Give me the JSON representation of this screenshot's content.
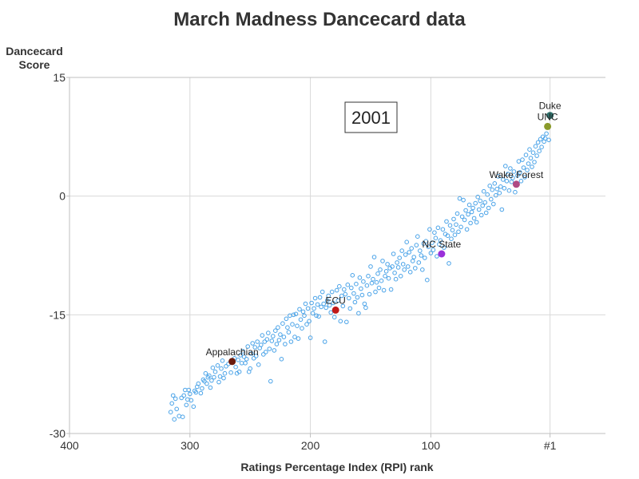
{
  "chart_data": {
    "type": "scatter",
    "title": "March Madness Dancecard data",
    "ylabel_line1": "Dancecard",
    "ylabel_line2": "Score",
    "xlabel": "Ratings Percentage Index (RPI) rank",
    "x_reversed": true,
    "xlim": [
      400,
      -45
    ],
    "ylim": [
      -30,
      15
    ],
    "grid": true,
    "x_ticks": [
      {
        "value": 400,
        "label": "400"
      },
      {
        "value": 300,
        "label": "300"
      },
      {
        "value": 200,
        "label": "200"
      },
      {
        "value": 100,
        "label": "100"
      },
      {
        "value": 1,
        "label": "#1"
      }
    ],
    "y_ticks": [
      {
        "value": 15,
        "label": "15"
      },
      {
        "value": 0,
        "label": "0"
      },
      {
        "value": -15,
        "label": "-15"
      },
      {
        "value": -30,
        "label": "-30"
      }
    ],
    "annotation": "2001",
    "point_color": "#4aa3e8",
    "highlighted": [
      {
        "name": "Duke",
        "x": 1,
        "y": 10.2,
        "color": "#2e6f6a"
      },
      {
        "name": "UNC",
        "x": 3,
        "y": 8.8,
        "color": "#8a9a2a"
      },
      {
        "name": "Wake Forest",
        "x": 29,
        "y": 1.5,
        "color": "#b04a82"
      },
      {
        "name": "NC State",
        "x": 91,
        "y": -7.3,
        "color": "#9b30d9"
      },
      {
        "name": "ECU",
        "x": 179,
        "y": -14.4,
        "color": "#c01818"
      },
      {
        "name": "Appalachian",
        "x": 265,
        "y": -20.9,
        "color": "#6b1b0d"
      }
    ],
    "series_points": [
      [
        316,
        -27.3
      ],
      [
        315,
        -26.2
      ],
      [
        314,
        -25.2
      ],
      [
        313,
        -28.2
      ],
      [
        312,
        -25.6
      ],
      [
        311,
        -26.9
      ],
      [
        309,
        -27.8
      ],
      [
        307,
        -25.5
      ],
      [
        306,
        -27.9
      ],
      [
        305,
        -25.2
      ],
      [
        304,
        -24.5
      ],
      [
        303,
        -26.4
      ],
      [
        302,
        -25.7
      ],
      [
        301,
        -24.5
      ],
      [
        300,
        -25.0
      ],
      [
        299,
        -25.8
      ],
      [
        297,
        -26.6
      ],
      [
        296,
        -24.6
      ],
      [
        295,
        -24.8
      ],
      [
        294,
        -24.1
      ],
      [
        293,
        -23.7
      ],
      [
        291,
        -24.9
      ],
      [
        290,
        -24.3
      ],
      [
        289,
        -23.2
      ],
      [
        288,
        -23.4
      ],
      [
        287,
        -22.4
      ],
      [
        286,
        -23.7
      ],
      [
        285,
        -22.9
      ],
      [
        284,
        -22.7
      ],
      [
        283,
        -24.2
      ],
      [
        282,
        -23.3
      ],
      [
        281,
        -21.7
      ],
      [
        280,
        -22.9
      ],
      [
        279,
        -22.2
      ],
      [
        277,
        -21.4
      ],
      [
        276,
        -23.5
      ],
      [
        275,
        -22.8
      ],
      [
        274,
        -21.8
      ],
      [
        273,
        -20.8
      ],
      [
        272,
        -23.0
      ],
      [
        271,
        -22.4
      ],
      [
        270,
        -21.5
      ],
      [
        268,
        -21.2
      ],
      [
        266,
        -22.3
      ],
      [
        263,
        -20.5
      ],
      [
        262,
        -21.6
      ],
      [
        261,
        -22.4
      ],
      [
        260,
        -20.7
      ],
      [
        259,
        -22.2
      ],
      [
        258,
        -20.1
      ],
      [
        257,
        -21.1
      ],
      [
        256,
        -19.6
      ],
      [
        255,
        -20.3
      ],
      [
        254,
        -21.1
      ],
      [
        253,
        -20.6
      ],
      [
        252,
        -19.0
      ],
      [
        251,
        -22.2
      ],
      [
        250,
        -21.8
      ],
      [
        249,
        -19.9
      ],
      [
        248,
        -18.6
      ],
      [
        247,
        -20.5
      ],
      [
        246,
        -19.1
      ],
      [
        245,
        -20.2
      ],
      [
        244,
        -18.4
      ],
      [
        243,
        -21.3
      ],
      [
        242,
        -19.2
      ],
      [
        241,
        -18.8
      ],
      [
        240,
        -17.6
      ],
      [
        239,
        -20.0
      ],
      [
        238,
        -18.4
      ],
      [
        237,
        -19.7
      ],
      [
        236,
        -18.1
      ],
      [
        235,
        -17.3
      ],
      [
        234,
        -19.3
      ],
      [
        233,
        -23.4
      ],
      [
        232,
        -18.3
      ],
      [
        231,
        -17.7
      ],
      [
        230,
        -19.5
      ],
      [
        229,
        -17.0
      ],
      [
        228,
        -18.7
      ],
      [
        227,
        -16.6
      ],
      [
        226,
        -18.2
      ],
      [
        225,
        -17.5
      ],
      [
        224,
        -20.6
      ],
      [
        223,
        -16.1
      ],
      [
        222,
        -17.8
      ],
      [
        221,
        -18.7
      ],
      [
        220,
        -15.5
      ],
      [
        219,
        -16.6
      ],
      [
        218,
        -17.2
      ],
      [
        217,
        -15.1
      ],
      [
        216,
        -18.4
      ],
      [
        215,
        -16.2
      ],
      [
        214,
        -15.0
      ],
      [
        213,
        -17.8
      ],
      [
        212,
        -14.9
      ],
      [
        211,
        -16.4
      ],
      [
        210,
        -18.0
      ],
      [
        209,
        -14.3
      ],
      [
        208,
        -15.6
      ],
      [
        207,
        -16.7
      ],
      [
        206,
        -14.6
      ],
      [
        205,
        -15.1
      ],
      [
        204,
        -13.6
      ],
      [
        203,
        -16.2
      ],
      [
        202,
        -14.2
      ],
      [
        201,
        -15.8
      ],
      [
        200,
        -17.9
      ],
      [
        199,
        -13.5
      ],
      [
        198,
        -14.8
      ],
      [
        197,
        -14.2
      ],
      [
        196,
        -12.9
      ],
      [
        195,
        -15.1
      ],
      [
        194,
        -13.7
      ],
      [
        193,
        -15.2
      ],
      [
        192,
        -12.8
      ],
      [
        191,
        -14.0
      ],
      [
        190,
        -12.1
      ],
      [
        189,
        -13.6
      ],
      [
        188,
        -18.4
      ],
      [
        187,
        -14.1
      ],
      [
        186,
        -13.2
      ],
      [
        185,
        -12.6
      ],
      [
        184,
        -13.8
      ],
      [
        183,
        -14.7
      ],
      [
        182,
        -12.1
      ],
      [
        181,
        -13.5
      ],
      [
        180,
        -15.3
      ],
      [
        178,
        -11.9
      ],
      [
        177,
        -13.2
      ],
      [
        176,
        -11.4
      ],
      [
        175,
        -15.8
      ],
      [
        174,
        -12.6
      ],
      [
        173,
        -13.9
      ],
      [
        172,
        -11.8
      ],
      [
        171,
        -12.4
      ],
      [
        170,
        -15.9
      ],
      [
        169,
        -11.2
      ],
      [
        168,
        -12.9
      ],
      [
        167,
        -14.2
      ],
      [
        166,
        -11.6
      ],
      [
        165,
        -10.0
      ],
      [
        164,
        -12.3
      ],
      [
        163,
        -13.4
      ],
      [
        162,
        -11.1
      ],
      [
        161,
        -12.8
      ],
      [
        160,
        -14.8
      ],
      [
        159,
        -10.3
      ],
      [
        158,
        -11.7
      ],
      [
        157,
        -12.5
      ],
      [
        156,
        -10.8
      ],
      [
        155,
        -13.6
      ],
      [
        154,
        -14.1
      ],
      [
        153,
        -11.3
      ],
      [
        152,
        -10.1
      ],
      [
        151,
        -12.4
      ],
      [
        150,
        -8.9
      ],
      [
        149,
        -11.0
      ],
      [
        148,
        -10.5
      ],
      [
        147,
        -7.7
      ],
      [
        146,
        -12.1
      ],
      [
        145,
        -10.9
      ],
      [
        144,
        -9.8
      ],
      [
        143,
        -11.6
      ],
      [
        142,
        -9.3
      ],
      [
        141,
        -10.7
      ],
      [
        140,
        -8.2
      ],
      [
        139,
        -11.9
      ],
      [
        138,
        -10.1
      ],
      [
        137,
        -9.5
      ],
      [
        136,
        -8.6
      ],
      [
        135,
        -10.4
      ],
      [
        134,
        -9.1
      ],
      [
        133,
        -11.8
      ],
      [
        132,
        -8.9
      ],
      [
        131,
        -7.3
      ],
      [
        130,
        -9.7
      ],
      [
        129,
        -10.5
      ],
      [
        128,
        -8.4
      ],
      [
        127,
        -9.0
      ],
      [
        126,
        -7.8
      ],
      [
        125,
        -10.1
      ],
      [
        124,
        -6.9
      ],
      [
        123,
        -8.6
      ],
      [
        122,
        -9.3
      ],
      [
        121,
        -7.4
      ],
      [
        120,
        -5.8
      ],
      [
        119,
        -8.9
      ],
      [
        118,
        -7.1
      ],
      [
        117,
        -9.6
      ],
      [
        116,
        -6.6
      ],
      [
        115,
        -8.2
      ],
      [
        114,
        -7.7
      ],
      [
        113,
        -9.1
      ],
      [
        112,
        -6.2
      ],
      [
        111,
        -5.1
      ],
      [
        110,
        -8.4
      ],
      [
        109,
        -6.9
      ],
      [
        108,
        -7.5
      ],
      [
        107,
        -9.3
      ],
      [
        106,
        -6.0
      ],
      [
        105,
        -7.8
      ],
      [
        104,
        -5.7
      ],
      [
        103,
        -10.6
      ],
      [
        102,
        -6.4
      ],
      [
        101,
        -4.2
      ],
      [
        100,
        -7.2
      ],
      [
        99,
        -5.9
      ],
      [
        98,
        -6.8
      ],
      [
        97,
        -4.6
      ],
      [
        96,
        -5.3
      ],
      [
        95,
        -7.6
      ],
      [
        94,
        -4.0
      ],
      [
        93,
        -6.1
      ],
      [
        92,
        -5.6
      ],
      [
        90,
        -4.2
      ],
      [
        89,
        -6.5
      ],
      [
        88,
        -4.8
      ],
      [
        87,
        -3.2
      ],
      [
        86,
        -5.0
      ],
      [
        85,
        -8.5
      ],
      [
        84,
        -3.7
      ],
      [
        83,
        -5.4
      ],
      [
        82,
        -4.3
      ],
      [
        81,
        -2.9
      ],
      [
        80,
        -4.9
      ],
      [
        79,
        -3.6
      ],
      [
        78,
        -2.2
      ],
      [
        77,
        -4.5
      ],
      [
        76,
        -0.3
      ],
      [
        75,
        -3.9
      ],
      [
        74,
        -2.6
      ],
      [
        73,
        -0.5
      ],
      [
        72,
        -3.0
      ],
      [
        71,
        -1.8
      ],
      [
        70,
        -4.2
      ],
      [
        69,
        -2.3
      ],
      [
        68,
        -1.1
      ],
      [
        67,
        -3.4
      ],
      [
        66,
        -2.0
      ],
      [
        65,
        -1.5
      ],
      [
        64,
        -2.8
      ],
      [
        63,
        -0.9
      ],
      [
        62,
        -3.3
      ],
      [
        61,
        -0.1
      ],
      [
        60,
        -1.7
      ],
      [
        59,
        -0.6
      ],
      [
        58,
        -2.4
      ],
      [
        57,
        -1.2
      ],
      [
        56,
        0.6
      ],
      [
        55,
        -0.8
      ],
      [
        54,
        -2.1
      ],
      [
        53,
        0.2
      ],
      [
        52,
        -1.5
      ],
      [
        51,
        1.3
      ],
      [
        50,
        -0.4
      ],
      [
        49,
        0.8
      ],
      [
        48,
        -1.0
      ],
      [
        47,
        1.6
      ],
      [
        46,
        0.1
      ],
      [
        45,
        0.9
      ],
      [
        44,
        2.5
      ],
      [
        43,
        0.4
      ],
      [
        42,
        1.2
      ],
      [
        41,
        -1.7
      ],
      [
        40,
        2.1
      ],
      [
        39,
        1.0
      ],
      [
        38,
        3.8
      ],
      [
        37,
        1.9
      ],
      [
        36,
        2.8
      ],
      [
        35,
        0.7
      ],
      [
        34,
        3.5
      ],
      [
        33,
        1.8
      ],
      [
        32,
        2.3
      ],
      [
        31,
        3.1
      ],
      [
        30,
        0.5
      ],
      [
        28,
        2.6
      ],
      [
        27,
        4.4
      ],
      [
        26,
        3.0
      ],
      [
        25,
        1.9
      ],
      [
        24,
        4.6
      ],
      [
        23,
        3.6
      ],
      [
        22,
        2.4
      ],
      [
        21,
        5.2
      ],
      [
        20,
        3.3
      ],
      [
        19,
        4.1
      ],
      [
        18,
        5.9
      ],
      [
        17,
        4.8
      ],
      [
        16,
        3.7
      ],
      [
        15,
        5.5
      ],
      [
        14,
        4.3
      ],
      [
        13,
        6.3
      ],
      [
        12,
        5.1
      ],
      [
        11,
        6.8
      ],
      [
        10,
        5.7
      ],
      [
        9,
        7.2
      ],
      [
        8,
        6.2
      ],
      [
        7,
        7.5
      ],
      [
        6,
        6.9
      ],
      [
        5,
        7.3
      ],
      [
        4,
        7.9
      ],
      [
        2,
        7.1
      ]
    ]
  }
}
